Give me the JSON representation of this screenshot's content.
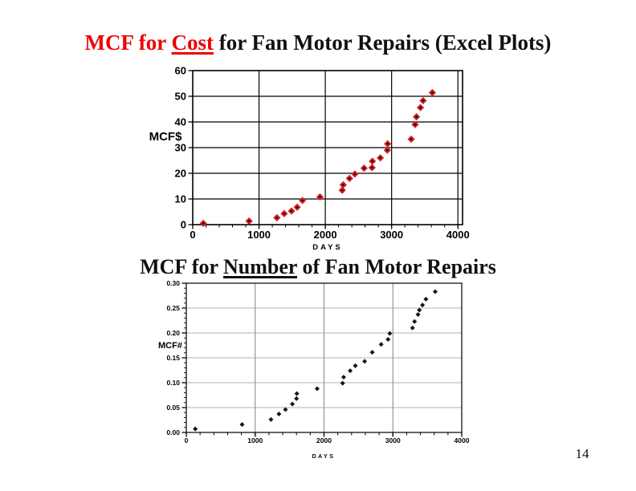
{
  "page": {
    "number": "14",
    "background": "#ffffff"
  },
  "titles": [
    {
      "name": "cost-chart-title",
      "segments": [
        {
          "text": "MCF for ",
          "color": "#ee0000",
          "underline": false
        },
        {
          "text": "Cost",
          "color": "#ee0000",
          "underline": true
        },
        {
          "text": " for Fan Motor Repairs (Excel Plots)",
          "color": "#111111",
          "underline": false
        }
      ]
    },
    {
      "name": "number-chart-title",
      "segments": [
        {
          "text": "MCF for ",
          "color": "#111111",
          "underline": false
        },
        {
          "text": "Number",
          "color": "#111111",
          "underline": true
        },
        {
          "text": " of Fan Motor Repairs",
          "color": "#111111",
          "underline": false
        }
      ]
    }
  ],
  "chart_data": [
    {
      "type": "scatter",
      "title": "MCF for Cost for Fan Motor Repairs (Excel Plots)",
      "xlabel": "DAYS",
      "ylabel": "MCF$",
      "xlim": [
        0,
        4070
      ],
      "ylim": [
        0,
        60
      ],
      "xticks": [
        0,
        1000,
        2000,
        3000,
        4000
      ],
      "xtick_labels": [
        "0",
        "1000",
        "2000",
        "3000",
        "4000"
      ],
      "yticks": [
        0,
        10,
        20,
        30,
        40,
        50,
        60
      ],
      "ytick_labels": [
        "0",
        "10",
        "20",
        "30",
        "40",
        "50",
        "60"
      ],
      "grid": true,
      "legend": "none",
      "marker": "diamond",
      "marker_color": "#cf1f25",
      "x": [
        160,
        850,
        1270,
        1380,
        1490,
        1575,
        1655,
        1920,
        2255,
        2270,
        2365,
        2445,
        2585,
        2705,
        2710,
        2830,
        2935,
        2940,
        3295,
        3355,
        3375,
        3435,
        3475,
        3615
      ],
      "y": [
        0.5,
        1.4,
        2.7,
        4.3,
        5.3,
        6.8,
        9.4,
        10.8,
        13.4,
        15.5,
        18.0,
        19.7,
        22.0,
        22.2,
        24.7,
        26.0,
        29.0,
        31.5,
        33.3,
        39.0,
        42.0,
        45.6,
        48.3,
        51.4
      ]
    },
    {
      "type": "scatter",
      "title": "MCF for Number of Fan Motor Repairs",
      "xlabel": "DAYS",
      "ylabel": "MCF#",
      "xlim": [
        0,
        4000
      ],
      "ylim": [
        0,
        0.3
      ],
      "xticks": [
        0,
        1000,
        2000,
        3000,
        4000
      ],
      "xtick_labels": [
        "0",
        "1000",
        "2000",
        "3000",
        "4000"
      ],
      "yticks": [
        0,
        0.05,
        0.1,
        0.15,
        0.2,
        0.25,
        0.3
      ],
      "ytick_labels": [
        "0.00",
        "0.05",
        "0.10",
        "0.15",
        "0.20",
        "0.25",
        "0.30"
      ],
      "grid": true,
      "legend": "none",
      "marker": "diamond",
      "marker_color": "#151515",
      "x": [
        130,
        810,
        1230,
        1345,
        1440,
        1540,
        1600,
        1605,
        1900,
        2270,
        2285,
        2380,
        2455,
        2590,
        2700,
        2830,
        2930,
        2955,
        3285,
        3315,
        3365,
        3385,
        3430,
        3480,
        3615
      ],
      "y": [
        0.007,
        0.016,
        0.026,
        0.037,
        0.046,
        0.057,
        0.068,
        0.078,
        0.088,
        0.099,
        0.111,
        0.124,
        0.134,
        0.143,
        0.161,
        0.177,
        0.187,
        0.199,
        0.21,
        0.223,
        0.237,
        0.246,
        0.256,
        0.268,
        0.283
      ]
    }
  ]
}
